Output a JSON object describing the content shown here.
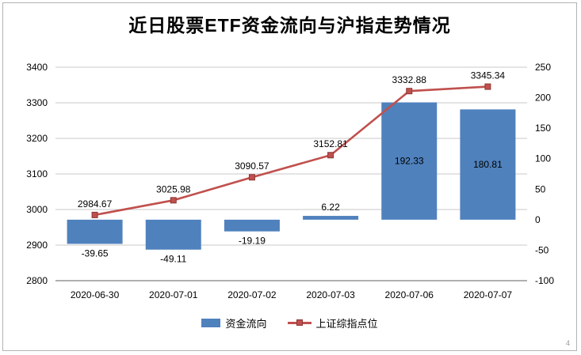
{
  "chart_data": {
    "type": "combo",
    "title": "近日股票ETF资金流向与沪指走势情况",
    "categories": [
      "2020-06-30",
      "2020-07-01",
      "2020-07-02",
      "2020-07-03",
      "2020-07-06",
      "2020-07-07"
    ],
    "series": [
      {
        "name": "资金流向",
        "type": "bar",
        "axis": "right",
        "color": "#4f81bd",
        "values": [
          -39.65,
          -49.11,
          -19.19,
          6.22,
          192.33,
          180.81
        ]
      },
      {
        "name": "上证综指点位",
        "type": "line",
        "axis": "left",
        "color": "#c0504d",
        "marker": "square",
        "values": [
          2984.67,
          3025.98,
          3090.57,
          3152.81,
          3332.88,
          3345.34
        ]
      }
    ],
    "left_axis": {
      "min": 2800,
      "max": 3400,
      "step": 100
    },
    "right_axis": {
      "min": -100,
      "max": 250,
      "step": 50
    },
    "grid": true,
    "legend_position": "bottom"
  },
  "corner_mark": "4"
}
